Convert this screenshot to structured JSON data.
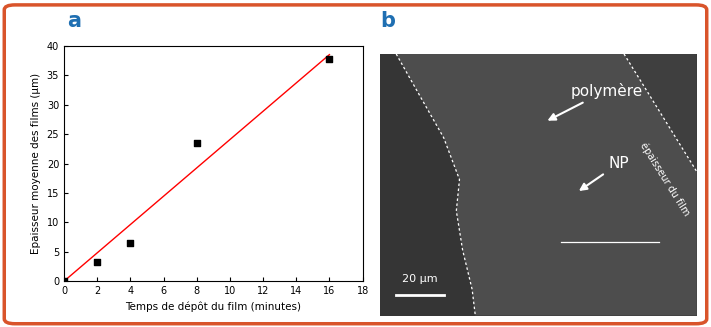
{
  "chart_data": {
    "panel_label": "a",
    "type": "scatter",
    "x_label": "Temps de dépôt du film (minutes)",
    "y_label": "Epaisseur moyenne des films (µm)",
    "xlim": [
      0,
      18
    ],
    "xticks": [
      0,
      2,
      4,
      6,
      8,
      10,
      12,
      14,
      16,
      18
    ],
    "ylim": [
      0,
      40
    ],
    "yticks": [
      0,
      5,
      10,
      15,
      20,
      25,
      30,
      35,
      40
    ],
    "series": [
      {
        "type": "scatter",
        "marker": "square",
        "color": "#000000",
        "x": [
          0,
          2,
          4,
          8,
          16
        ],
        "values": [
          0,
          3.2,
          6.5,
          23.5,
          37.8
        ]
      },
      {
        "type": "line",
        "line_style": "solid",
        "color": "#ff0000",
        "x": [
          0,
          16
        ],
        "values": [
          0,
          38.5
        ]
      }
    ]
  },
  "micrograph": {
    "panel_label": "b",
    "annotations": [
      "polymère",
      "NP",
      "épaisseur du film"
    ],
    "scale_bar": "20 µm"
  }
}
